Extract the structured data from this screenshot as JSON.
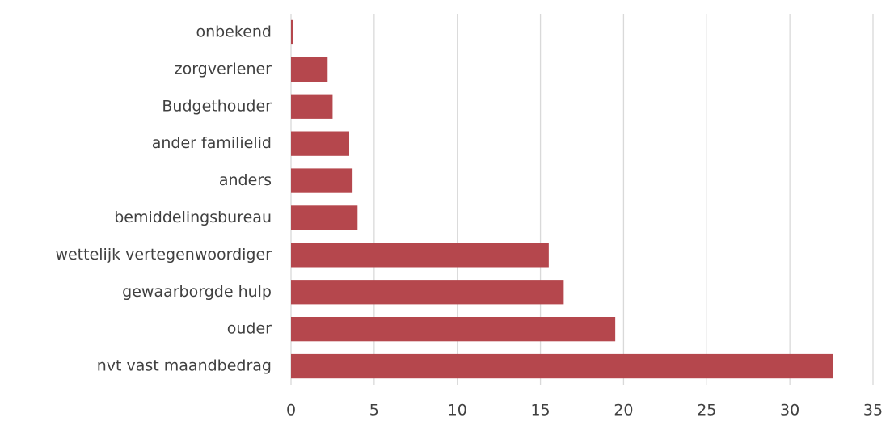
{
  "chart_data": {
    "type": "bar",
    "orientation": "horizontal",
    "categories": [
      "onbekend",
      "zorgverlener",
      "Budgethouder",
      "ander familielid",
      "anders",
      "bemiddelingsbureau",
      "wettelijk vertegenwoordiger",
      "gewaarborgde hulp",
      "ouder",
      "nvt vast maandbedrag"
    ],
    "values": [
      0.1,
      2.2,
      2.5,
      3.5,
      3.7,
      4.0,
      15.5,
      16.4,
      19.5,
      32.6
    ],
    "color": "#b5474d",
    "xlim": [
      0,
      35
    ],
    "xticks": [
      0,
      5,
      10,
      15,
      20,
      25,
      30,
      35
    ],
    "grid": true
  }
}
